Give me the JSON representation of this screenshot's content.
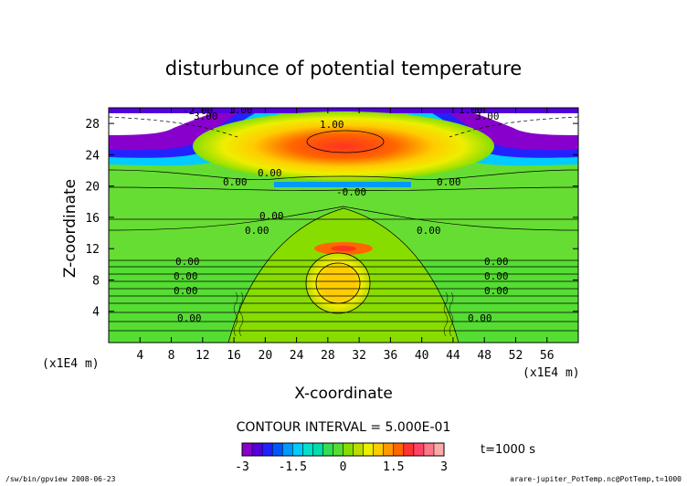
{
  "chart_data": {
    "type": "heatmap",
    "title": "disturbunce of potential temperature",
    "xlabel": "X-coordinate",
    "ylabel": "Z-coordinate",
    "x_unit": "(x1E4 m)",
    "y_unit": "(x1E4 m)",
    "xlim": [
      0,
      60
    ],
    "ylim": [
      0,
      30
    ],
    "x_ticks": [
      4,
      8,
      12,
      16,
      20,
      24,
      28,
      32,
      36,
      40,
      44,
      48,
      52,
      56
    ],
    "y_ticks": [
      4,
      8,
      12,
      16,
      20,
      24,
      28
    ],
    "contour_interval_text": "CONTOUR INTERVAL = 5.000E-01",
    "colorbar": {
      "min": -3,
      "max": 3,
      "tick_labels": [
        "-3",
        "-1.5",
        "0",
        "1.5",
        "3"
      ],
      "tick_values": [
        -3,
        -1.5,
        0,
        1.5,
        3
      ],
      "colors": [
        "#8800cc",
        "#5500dd",
        "#2222ff",
        "#0055ff",
        "#0099ff",
        "#00ccff",
        "#00e0cc",
        "#00ddaa",
        "#33dd55",
        "#55dd33",
        "#88dd00",
        "#bbdd00",
        "#eeee00",
        "#ffcc00",
        "#ff9900",
        "#ff6600",
        "#ff3333",
        "#ff4466",
        "#ff7788",
        "#ffaaaa"
      ]
    },
    "time_label": "t=1000 s",
    "contour_labels": [
      "-2.00",
      "3.00",
      "1.00",
      "1.00",
      "0.00",
      "-0.00"
    ]
  },
  "footer": {
    "left": "/sw/bin/gpview  2008-06-23",
    "right": "arare-jupiter_PotTemp.nc@PotTemp,t=1000"
  }
}
